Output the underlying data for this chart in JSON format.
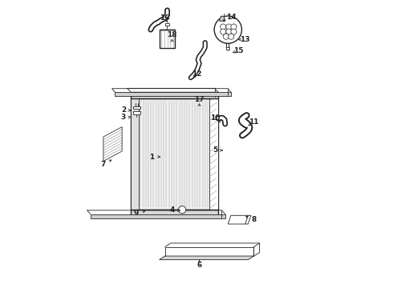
{
  "bg_color": "#ffffff",
  "line_color": "#222222",
  "fig_width": 4.9,
  "fig_height": 3.6,
  "dpi": 100,
  "label_positions": {
    "1": [
      0.345,
      0.455,
      0.375,
      0.455
    ],
    "2": [
      0.245,
      0.618,
      0.28,
      0.618
    ],
    "3": [
      0.245,
      0.594,
      0.28,
      0.594
    ],
    "4": [
      0.415,
      0.268,
      0.445,
      0.268
    ],
    "5": [
      0.565,
      0.478,
      0.6,
      0.478
    ],
    "6": [
      0.51,
      0.075,
      0.51,
      0.095
    ],
    "7": [
      0.175,
      0.43,
      0.205,
      0.445
    ],
    "8": [
      0.7,
      0.235,
      0.67,
      0.248
    ],
    "9": [
      0.29,
      0.258,
      0.33,
      0.268
    ],
    "10": [
      0.565,
      0.59,
      0.585,
      0.575
    ],
    "11": [
      0.7,
      0.578,
      0.68,
      0.563
    ],
    "12": [
      0.5,
      0.745,
      0.49,
      0.73
    ],
    "13": [
      0.67,
      0.865,
      0.645,
      0.865
    ],
    "14": [
      0.62,
      0.945,
      0.59,
      0.93
    ],
    "15": [
      0.645,
      0.825,
      0.625,
      0.82
    ],
    "16": [
      0.39,
      0.94,
      0.4,
      0.925
    ],
    "17": [
      0.51,
      0.655,
      0.51,
      0.643
    ],
    "18": [
      0.415,
      0.882,
      0.415,
      0.868
    ]
  }
}
